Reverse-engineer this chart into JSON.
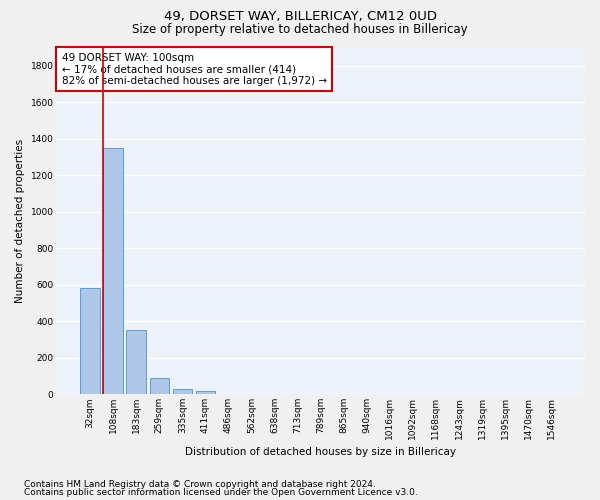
{
  "title": "49, DORSET WAY, BILLERICAY, CM12 0UD",
  "subtitle": "Size of property relative to detached houses in Billericay",
  "xlabel": "Distribution of detached houses by size in Billericay",
  "ylabel": "Number of detached properties",
  "categories": [
    "32sqm",
    "108sqm",
    "183sqm",
    "259sqm",
    "335sqm",
    "411sqm",
    "486sqm",
    "562sqm",
    "638sqm",
    "713sqm",
    "789sqm",
    "865sqm",
    "940sqm",
    "1016sqm",
    "1092sqm",
    "1168sqm",
    "1243sqm",
    "1319sqm",
    "1395sqm",
    "1470sqm",
    "1546sqm"
  ],
  "values": [
    580,
    1350,
    350,
    90,
    30,
    20,
    0,
    0,
    0,
    0,
    0,
    0,
    0,
    0,
    0,
    0,
    0,
    0,
    0,
    0,
    0
  ],
  "bar_color": "#aec6e8",
  "bar_edge_color": "#5a9fd4",
  "vline_color": "#cc0000",
  "vline_pos": 0.57,
  "annotation_text": "49 DORSET WAY: 100sqm\n← 17% of detached houses are smaller (414)\n82% of semi-detached houses are larger (1,972) →",
  "annotation_box_color": "#ffffff",
  "annotation_border_color": "#cc0000",
  "ylim": [
    0,
    1900
  ],
  "yticks": [
    0,
    200,
    400,
    600,
    800,
    1000,
    1200,
    1400,
    1600,
    1800
  ],
  "bg_color": "#eef3fb",
  "grid_color": "#ffffff",
  "footnote1": "Contains HM Land Registry data © Crown copyright and database right 2024.",
  "footnote2": "Contains public sector information licensed under the Open Government Licence v3.0.",
  "title_fontsize": 9.5,
  "subtitle_fontsize": 8.5,
  "axis_label_fontsize": 7.5,
  "tick_fontsize": 6.5,
  "annotation_fontsize": 7.5,
  "footnote_fontsize": 6.5
}
